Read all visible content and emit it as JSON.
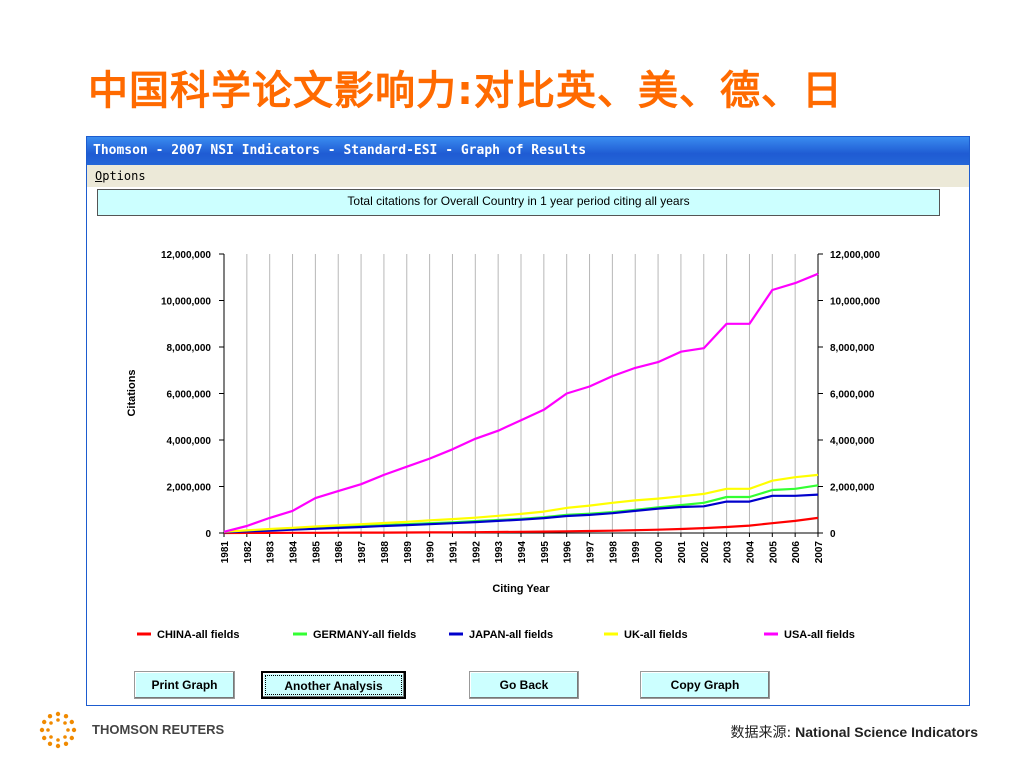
{
  "slide": {
    "title": "中国科学论文影响力:对比英、美、德、日"
  },
  "window": {
    "title": "Thomson - 2007 NSI Indicators - Standard-ESI - Graph of Results",
    "menu_options": "ptions",
    "menu_options_accel": "O"
  },
  "buttons": {
    "print": "Print Graph",
    "another": "Another Analysis",
    "back": "Go Back",
    "copy": "Copy Graph"
  },
  "footer": {
    "brand": "THOMSON REUTERS",
    "source_prefix": "数据来源:",
    "source_name": " National Science Indicators"
  },
  "colors": {
    "china": "#ff0000",
    "germany": "#33ff33",
    "japan": "#0000cc",
    "uk": "#ffff00",
    "usa": "#ff00ff",
    "title_orange": "#ff6a00"
  },
  "chart_data": {
    "type": "line",
    "title": "Total citations for Overall Country in 1 year period citing all years",
    "xlabel": "Citing Year",
    "ylabel": "Citations",
    "ylim": [
      0,
      12000000
    ],
    "yticks": [
      "0",
      "2,000,000",
      "4,000,000",
      "6,000,000",
      "8,000,000",
      "10,000,000",
      "12,000,000"
    ],
    "grid": true,
    "legend_position": "bottom",
    "x": [
      1981,
      1982,
      1983,
      1984,
      1985,
      1986,
      1987,
      1988,
      1989,
      1990,
      1991,
      1992,
      1993,
      1994,
      1995,
      1996,
      1997,
      1998,
      1999,
      2000,
      2001,
      2002,
      2003,
      2004,
      2005,
      2006,
      2007
    ],
    "series": [
      {
        "name": "CHINA-all fields",
        "color": "#ff0000",
        "values": [
          2000,
          4000,
          6000,
          8000,
          10000,
          13000,
          16000,
          19000,
          22000,
          26000,
          30000,
          36000,
          42000,
          50000,
          60000,
          72000,
          85000,
          100000,
          120000,
          140000,
          170000,
          210000,
          260000,
          320000,
          420000,
          520000,
          650000
        ]
      },
      {
        "name": "GERMANY-all fields",
        "color": "#33ff33",
        "values": [
          40000,
          90000,
          130000,
          170000,
          220000,
          260000,
          300000,
          340000,
          380000,
          420000,
          460000,
          510000,
          560000,
          610000,
          680000,
          780000,
          830000,
          900000,
          1000000,
          1100000,
          1200000,
          1300000,
          1550000,
          1550000,
          1850000,
          1900000,
          2050000
        ]
      },
      {
        "name": "JAPAN-all fields",
        "color": "#0000cc",
        "values": [
          30000,
          70000,
          100000,
          140000,
          180000,
          220000,
          260000,
          300000,
          340000,
          380000,
          420000,
          470000,
          520000,
          570000,
          640000,
          730000,
          780000,
          850000,
          950000,
          1050000,
          1120000,
          1150000,
          1350000,
          1350000,
          1600000,
          1600000,
          1650000
        ]
      },
      {
        "name": "UK-all fields",
        "color": "#ffff00",
        "values": [
          50000,
          110000,
          170000,
          220000,
          280000,
          330000,
          380000,
          430000,
          480000,
          540000,
          600000,
          660000,
          740000,
          820000,
          920000,
          1080000,
          1180000,
          1300000,
          1400000,
          1480000,
          1580000,
          1680000,
          1900000,
          1900000,
          2250000,
          2400000,
          2500000
        ]
      },
      {
        "name": "USA-all fields",
        "color": "#ff00ff",
        "values": [
          50000,
          300000,
          650000,
          950000,
          1500000,
          1800000,
          2100000,
          2500000,
          2850000,
          3200000,
          3600000,
          4050000,
          4400000,
          4850000,
          5300000,
          6000000,
          6300000,
          6750000,
          7100000,
          7350000,
          7800000,
          7950000,
          9000000,
          9000000,
          10450000,
          10750000,
          11150000
        ]
      }
    ]
  }
}
